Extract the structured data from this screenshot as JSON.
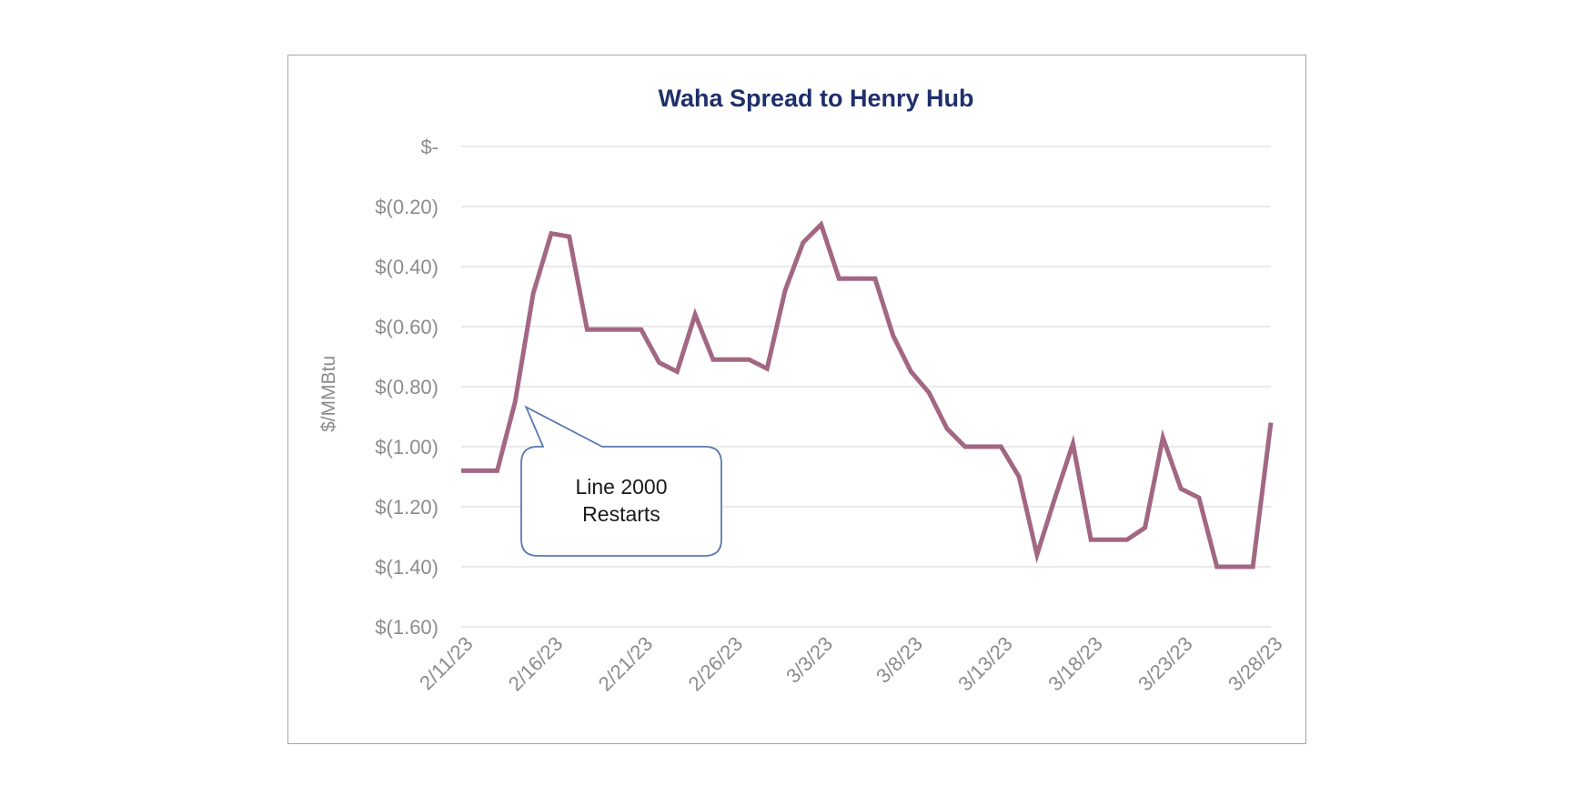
{
  "chart_data": {
    "type": "line",
    "title": "Waha Spread to Henry Hub",
    "ylabel": "$/MMBtu",
    "xlabel": "",
    "ylim": [
      -1.6,
      0
    ],
    "yticks": [
      {
        "value": 0,
        "label": "$-"
      },
      {
        "value": -0.2,
        "label": "$(0.20)"
      },
      {
        "value": -0.4,
        "label": "$(0.40)"
      },
      {
        "value": -0.6,
        "label": "$(0.60)"
      },
      {
        "value": -0.8,
        "label": "$(0.80)"
      },
      {
        "value": -1.0,
        "label": "$(1.00)"
      },
      {
        "value": -1.2,
        "label": "$(1.20)"
      },
      {
        "value": -1.4,
        "label": "$(1.40)"
      },
      {
        "value": -1.6,
        "label": "$(1.60)"
      }
    ],
    "xticks": [
      {
        "date": "2023-02-11",
        "label": "2/11/23"
      },
      {
        "date": "2023-02-16",
        "label": "2/16/23"
      },
      {
        "date": "2023-02-21",
        "label": "2/21/23"
      },
      {
        "date": "2023-02-26",
        "label": "2/26/23"
      },
      {
        "date": "2023-03-03",
        "label": "3/3/23"
      },
      {
        "date": "2023-03-08",
        "label": "3/8/23"
      },
      {
        "date": "2023-03-13",
        "label": "3/13/23"
      },
      {
        "date": "2023-03-18",
        "label": "3/18/23"
      },
      {
        "date": "2023-03-23",
        "label": "3/23/23"
      },
      {
        "date": "2023-03-28",
        "label": "3/28/23"
      }
    ],
    "grid": true,
    "line_color": "#a26783",
    "series": [
      {
        "x": [
          "2023-02-11",
          "2023-02-12",
          "2023-02-13",
          "2023-02-14",
          "2023-02-15",
          "2023-02-16",
          "2023-02-17",
          "2023-02-18",
          "2023-02-19",
          "2023-02-20",
          "2023-02-21",
          "2023-02-22",
          "2023-02-23",
          "2023-02-24",
          "2023-02-25",
          "2023-02-26",
          "2023-02-27",
          "2023-02-28",
          "2023-03-01",
          "2023-03-02",
          "2023-03-03",
          "2023-03-04",
          "2023-03-05",
          "2023-03-06",
          "2023-03-07",
          "2023-03-08",
          "2023-03-09",
          "2023-03-10",
          "2023-03-11",
          "2023-03-12",
          "2023-03-13",
          "2023-03-14",
          "2023-03-15",
          "2023-03-16",
          "2023-03-17",
          "2023-03-18",
          "2023-03-19",
          "2023-03-20",
          "2023-03-21",
          "2023-03-22",
          "2023-03-23",
          "2023-03-24",
          "2023-03-25",
          "2023-03-26",
          "2023-03-27",
          "2023-03-28"
        ],
        "values": [
          -1.08,
          -1.08,
          -1.08,
          -0.85,
          -0.49,
          -0.29,
          -0.3,
          -0.61,
          -0.61,
          -0.61,
          -0.61,
          -0.72,
          -0.75,
          -0.56,
          -0.71,
          -0.71,
          -0.71,
          -0.74,
          -0.48,
          -0.32,
          -0.26,
          -0.44,
          -0.44,
          -0.44,
          -0.63,
          -0.75,
          -0.82,
          -0.94,
          -1.0,
          -1.0,
          -1.0,
          -1.1,
          -1.36,
          -1.17,
          -0.99,
          -1.31,
          -1.31,
          -1.31,
          -1.27,
          -0.97,
          -1.14,
          -1.17,
          -1.4,
          -1.4,
          -1.4,
          -0.92
        ]
      }
    ],
    "annotations": [
      {
        "text_lines": [
          "Line 2000",
          "Restarts"
        ],
        "target_date": "2023-02-14",
        "target_value": -0.85
      }
    ]
  }
}
